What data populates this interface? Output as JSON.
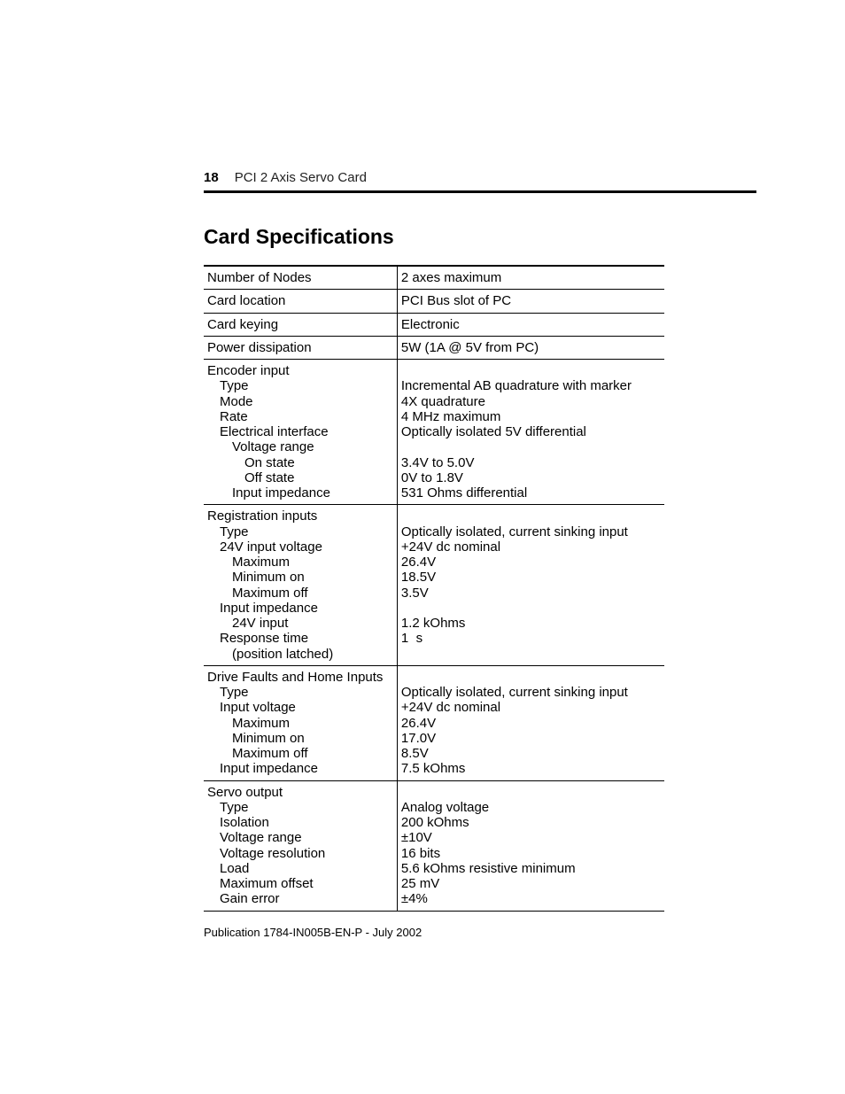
{
  "page_number": "18",
  "running_title": "PCI 2 Axis Servo Card",
  "section_title": "Card Specifications",
  "footer": "Publication 1784-IN005B-EN-P - July 2002",
  "rows": [
    {
      "label_lines": [
        {
          "t": "Number of Nodes",
          "lv": 0
        }
      ],
      "value_lines": [
        {
          "t": "2 axes maximum"
        }
      ]
    },
    {
      "label_lines": [
        {
          "t": "Card location",
          "lv": 0
        }
      ],
      "value_lines": [
        {
          "t": "PCI Bus slot of PC"
        }
      ]
    },
    {
      "label_lines": [
        {
          "t": "Card keying",
          "lv": 0
        }
      ],
      "value_lines": [
        {
          "t": "Electronic"
        }
      ]
    },
    {
      "label_lines": [
        {
          "t": "Power dissipation",
          "lv": 0
        }
      ],
      "value_lines": [
        {
          "t": "5W (1A @ 5V from PC)"
        }
      ]
    },
    {
      "label_lines": [
        {
          "t": "Encoder input",
          "lv": 0
        },
        {
          "t": "Type",
          "lv": 1
        },
        {
          "t": "Mode",
          "lv": 1
        },
        {
          "t": "Rate",
          "lv": 1
        },
        {
          "t": "Electrical interface",
          "lv": 1
        },
        {
          "t": "Voltage range",
          "lv": 2
        },
        {
          "t": "On state",
          "lv": 3
        },
        {
          "t": "Off state",
          "lv": 3
        },
        {
          "t": "Input impedance",
          "lv": 2
        }
      ],
      "value_lines": [
        {
          "t": " "
        },
        {
          "t": "Incremental AB quadrature with marker"
        },
        {
          "t": "4X quadrature"
        },
        {
          "t": "4 MHz maximum"
        },
        {
          "t": "Optically isolated 5V differential"
        },
        {
          "t": " "
        },
        {
          "t": "3.4V to 5.0V"
        },
        {
          "t": "0V to 1.8V"
        },
        {
          "t": "531 Ohms differential"
        }
      ]
    },
    {
      "label_lines": [
        {
          "t": "Registration inputs",
          "lv": 0
        },
        {
          "t": "Type",
          "lv": 1
        },
        {
          "t": "24V input voltage",
          "lv": 1
        },
        {
          "t": "Maximum",
          "lv": 2
        },
        {
          "t": "Minimum on",
          "lv": 2
        },
        {
          "t": "Maximum off",
          "lv": 2
        },
        {
          "t": "Input impedance",
          "lv": 1
        },
        {
          "t": "24V input",
          "lv": 2
        },
        {
          "t": "Response time",
          "lv": 1
        },
        {
          "t": "(position latched)",
          "lv": 2
        }
      ],
      "value_lines": [
        {
          "t": " "
        },
        {
          "t": "Optically isolated, current sinking input"
        },
        {
          "t": "+24V dc nominal"
        },
        {
          "t": "26.4V"
        },
        {
          "t": "18.5V"
        },
        {
          "t": "3.5V"
        },
        {
          "t": " "
        },
        {
          "t": "1.2 kOhms"
        },
        {
          "t": "1  s"
        },
        {
          "t": " "
        }
      ]
    },
    {
      "label_lines": [
        {
          "t": "Drive Faults and Home Inputs",
          "lv": 0
        },
        {
          "t": "Type",
          "lv": 1
        },
        {
          "t": "Input voltage",
          "lv": 1
        },
        {
          "t": "Maximum",
          "lv": 2
        },
        {
          "t": "Minimum on",
          "lv": 2
        },
        {
          "t": "Maximum off",
          "lv": 2
        },
        {
          "t": "Input impedance",
          "lv": 1
        }
      ],
      "value_lines": [
        {
          "t": " "
        },
        {
          "t": "Optically isolated, current sinking input"
        },
        {
          "t": "+24V dc nominal"
        },
        {
          "t": "26.4V"
        },
        {
          "t": "17.0V"
        },
        {
          "t": "8.5V"
        },
        {
          "t": "7.5 kOhms"
        }
      ]
    },
    {
      "label_lines": [
        {
          "t": "Servo output",
          "lv": 0
        },
        {
          "t": "Type",
          "lv": 1
        },
        {
          "t": "Isolation",
          "lv": 1
        },
        {
          "t": "Voltage range",
          "lv": 1
        },
        {
          "t": "Voltage resolution",
          "lv": 1
        },
        {
          "t": "Load",
          "lv": 1
        },
        {
          "t": "Maximum offset",
          "lv": 1
        },
        {
          "t": "Gain error",
          "lv": 1
        }
      ],
      "value_lines": [
        {
          "t": " "
        },
        {
          "t": "Analog voltage"
        },
        {
          "t": "200 kOhms"
        },
        {
          "t": "±10V"
        },
        {
          "t": "16 bits"
        },
        {
          "t": "5.6 kOhms resistive minimum"
        },
        {
          "t": "25 mV"
        },
        {
          "t": "±4%"
        }
      ]
    }
  ]
}
